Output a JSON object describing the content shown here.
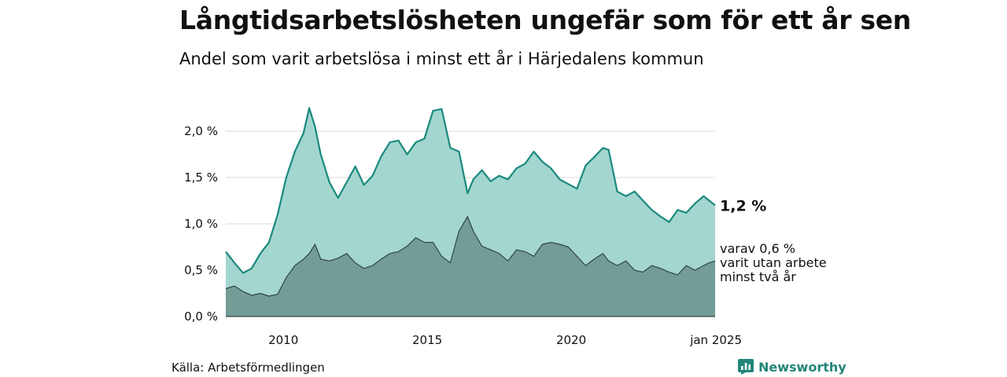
{
  "title": "Långtidsarbetslösheten ungefär som för ett år sen",
  "subtitle": "Andel som varit arbetslösa i minst ett år i Härjedalens kommun",
  "source": "Källa: Arbetsförmedlingen",
  "brand": "Newsworthy",
  "colors": {
    "total_line": "#1a8a7e",
    "total_fill": "#a3d6cf",
    "sub_line": "#2f4540",
    "sub_fill": "#739c96",
    "grid": "#d9d9d9"
  },
  "chart_data": {
    "type": "area",
    "title": "Långtidsarbetslösheten ungefär som för ett år sen",
    "subtitle": "Andel som varit arbetslösa i minst ett år i Härjedalens kommun",
    "xlabel": "",
    "ylabel": "",
    "ylim": [
      0,
      2.45
    ],
    "xlim": [
      2008.0,
      2025.0
    ],
    "grid": true,
    "yticks": [
      {
        "value": 0.0,
        "label": "0,0 %"
      },
      {
        "value": 0.5,
        "label": "0,5 %"
      },
      {
        "value": 1.0,
        "label": "1,0 %"
      },
      {
        "value": 1.5,
        "label": "1,5 %"
      },
      {
        "value": 2.0,
        "label": "2,0 %"
      }
    ],
    "xticks": [
      {
        "value": 2010,
        "label": "2010"
      },
      {
        "value": 2015,
        "label": "2015"
      },
      {
        "value": 2020,
        "label": "2020"
      },
      {
        "value": 2025,
        "label": "jan 2025"
      }
    ],
    "series": [
      {
        "name": "total",
        "end_label": "1,2 %",
        "x": [
          2008.0,
          2008.3,
          2008.6,
          2008.9,
          2009.2,
          2009.5,
          2009.8,
          2010.1,
          2010.4,
          2010.7,
          2010.9,
          2011.1,
          2011.3,
          2011.6,
          2011.9,
          2012.2,
          2012.5,
          2012.8,
          2013.1,
          2013.4,
          2013.7,
          2014.0,
          2014.3,
          2014.6,
          2014.9,
          2015.2,
          2015.5,
          2015.8,
          2016.1,
          2016.4,
          2016.6,
          2016.9,
          2017.2,
          2017.5,
          2017.8,
          2018.1,
          2018.4,
          2018.7,
          2019.0,
          2019.3,
          2019.6,
          2019.9,
          2020.2,
          2020.5,
          2020.8,
          2021.1,
          2021.3,
          2021.6,
          2021.9,
          2022.2,
          2022.5,
          2022.8,
          2023.1,
          2023.4,
          2023.7,
          2024.0,
          2024.3,
          2024.6,
          2024.8,
          2025.0
        ],
        "values": [
          0.7,
          0.58,
          0.47,
          0.52,
          0.68,
          0.8,
          1.1,
          1.5,
          1.78,
          1.98,
          2.25,
          2.05,
          1.75,
          1.45,
          1.28,
          1.45,
          1.62,
          1.42,
          1.52,
          1.73,
          1.88,
          1.9,
          1.75,
          1.88,
          1.92,
          2.22,
          2.24,
          1.82,
          1.78,
          1.33,
          1.48,
          1.58,
          1.46,
          1.52,
          1.48,
          1.6,
          1.65,
          1.78,
          1.67,
          1.6,
          1.48,
          1.43,
          1.38,
          1.63,
          1.72,
          1.82,
          1.8,
          1.35,
          1.3,
          1.35,
          1.25,
          1.15,
          1.08,
          1.02,
          1.15,
          1.12,
          1.22,
          1.3,
          1.25,
          1.2
        ]
      },
      {
        "name": "",
        "end_label": [
          "varav 0,6 %",
          "varit utan arbete",
          "minst två år"
        ],
        "x": [
          2008.0,
          2008.3,
          2008.6,
          2008.9,
          2009.2,
          2009.5,
          2009.8,
          2010.1,
          2010.4,
          2010.7,
          2010.9,
          2011.1,
          2011.3,
          2011.6,
          2011.9,
          2012.2,
          2012.5,
          2012.8,
          2013.1,
          2013.4,
          2013.7,
          2014.0,
          2014.3,
          2014.6,
          2014.9,
          2015.2,
          2015.5,
          2015.8,
          2016.1,
          2016.4,
          2016.6,
          2016.9,
          2017.2,
          2017.5,
          2017.8,
          2018.1,
          2018.4,
          2018.7,
          2019.0,
          2019.3,
          2019.6,
          2019.9,
          2020.2,
          2020.5,
          2020.8,
          2021.1,
          2021.3,
          2021.6,
          2021.9,
          2022.2,
          2022.5,
          2022.8,
          2023.1,
          2023.4,
          2023.7,
          2024.0,
          2024.3,
          2024.6,
          2024.8,
          2025.0
        ],
        "values": [
          0.3,
          0.33,
          0.27,
          0.23,
          0.25,
          0.22,
          0.24,
          0.42,
          0.55,
          0.62,
          0.68,
          0.78,
          0.62,
          0.6,
          0.63,
          0.68,
          0.58,
          0.52,
          0.55,
          0.62,
          0.68,
          0.7,
          0.76,
          0.85,
          0.8,
          0.8,
          0.65,
          0.58,
          0.92,
          1.08,
          0.92,
          0.76,
          0.72,
          0.68,
          0.6,
          0.72,
          0.7,
          0.65,
          0.78,
          0.8,
          0.78,
          0.75,
          0.65,
          0.55,
          0.62,
          0.68,
          0.6,
          0.55,
          0.6,
          0.5,
          0.48,
          0.55,
          0.52,
          0.48,
          0.45,
          0.55,
          0.5,
          0.55,
          0.58,
          0.6
        ]
      }
    ]
  }
}
